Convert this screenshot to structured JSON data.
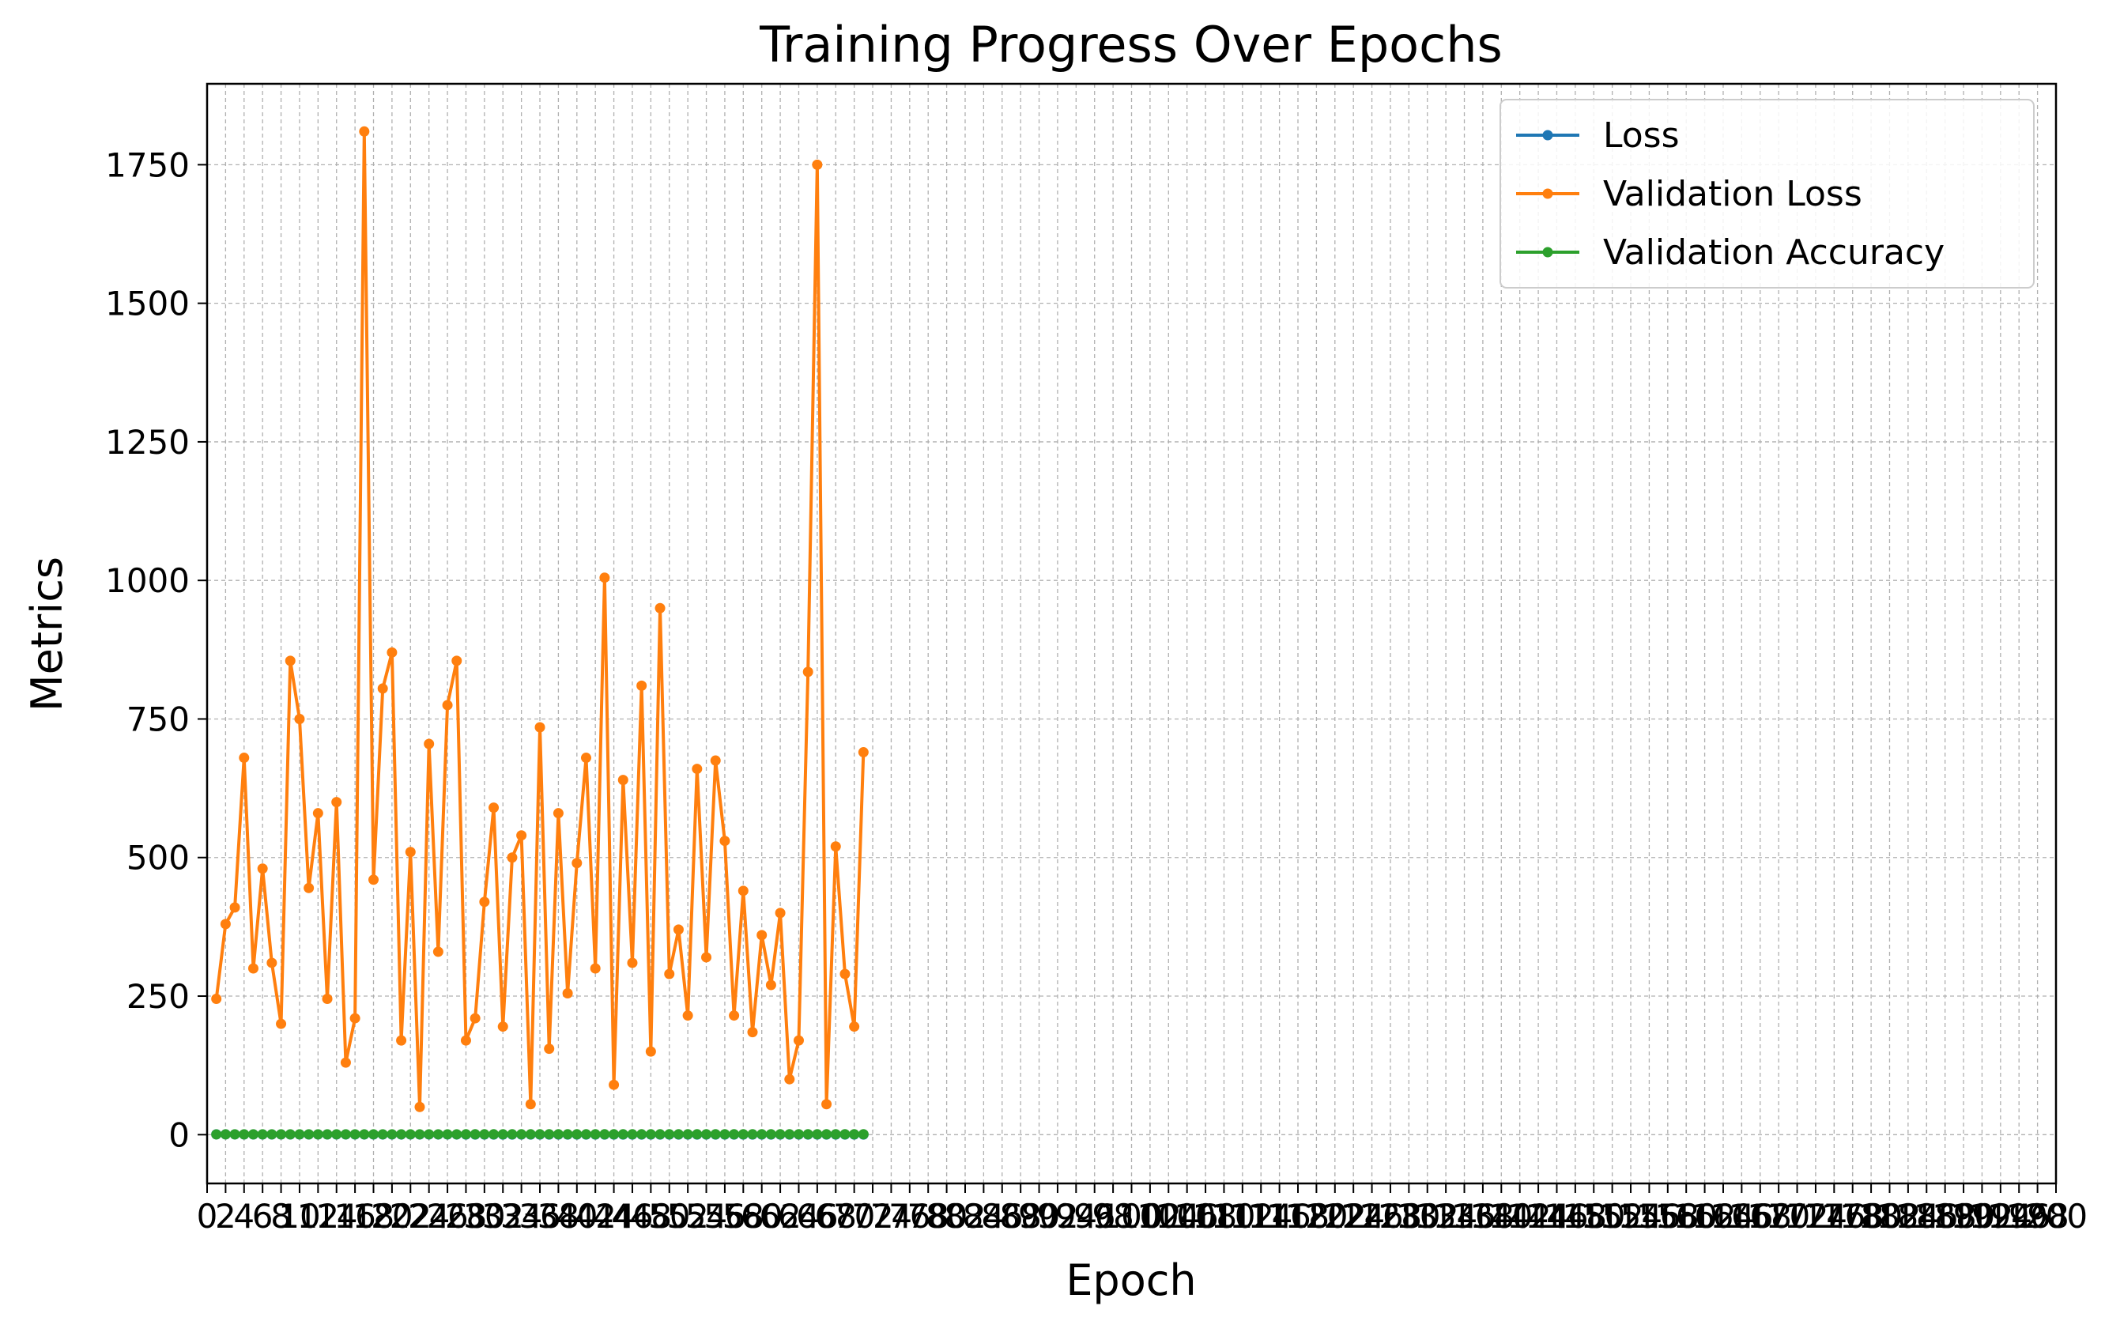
{
  "chart_data": {
    "type": "line",
    "title": "Training Progress Over Epochs",
    "xlabel": "Epoch",
    "ylabel": "Metrics",
    "xlim": [
      0,
      200
    ],
    "ylim": [
      -88,
      1896
    ],
    "x_ticks_every": 2,
    "y_ticks": [
      0,
      250,
      500,
      750,
      1000,
      1250,
      1500,
      1750
    ],
    "grid": true,
    "legend_position": "top-right",
    "series": [
      {
        "name": "Loss",
        "color": "#1f77b4",
        "values": [
          0.62,
          0.55,
          0.5,
          0.47,
          0.45,
          0.43,
          0.41,
          0.4,
          0.39,
          0.38,
          0.37,
          0.36,
          0.355,
          0.35,
          0.345,
          0.34,
          0.335,
          0.33,
          0.325,
          0.32,
          0.318,
          0.315,
          0.312,
          0.31,
          0.308,
          0.305,
          0.303,
          0.3,
          0.298,
          0.296,
          0.294,
          0.292,
          0.29,
          0.288,
          0.286,
          0.284,
          0.282,
          0.28,
          0.278,
          0.276,
          0.274,
          0.272,
          0.27,
          0.268,
          0.266,
          0.264,
          0.262,
          0.26,
          0.258,
          0.256,
          0.254,
          0.252,
          0.25,
          0.248,
          0.246,
          0.244,
          0.242,
          0.24,
          0.238,
          0.236,
          0.234,
          0.232,
          0.23,
          0.228,
          0.226,
          0.224,
          0.222,
          0.22,
          0.218,
          0.216,
          0.214
        ]
      },
      {
        "name": "Validation Loss",
        "color": "#ff7f0e",
        "values": [
          245,
          380,
          410,
          680,
          300,
          480,
          310,
          200,
          855,
          750,
          445,
          580,
          245,
          600,
          130,
          210,
          1810,
          460,
          805,
          870,
          170,
          510,
          50,
          705,
          330,
          775,
          855,
          170,
          210,
          420,
          590,
          195,
          500,
          540,
          55,
          735,
          155,
          580,
          255,
          490,
          680,
          300,
          1005,
          90,
          640,
          310,
          810,
          150,
          950,
          290,
          370,
          215,
          660,
          320,
          675,
          530,
          215,
          440,
          185,
          360,
          270,
          400,
          100,
          170,
          835,
          1750,
          55,
          520,
          290,
          195,
          690
        ]
      },
      {
        "name": "Validation Accuracy",
        "color": "#2ca02c",
        "values": [
          0.52,
          0.55,
          0.57,
          0.58,
          0.6,
          0.61,
          0.62,
          0.63,
          0.63,
          0.64,
          0.64,
          0.65,
          0.65,
          0.66,
          0.66,
          0.66,
          0.67,
          0.67,
          0.67,
          0.68,
          0.68,
          0.68,
          0.68,
          0.69,
          0.69,
          0.69,
          0.69,
          0.7,
          0.7,
          0.7,
          0.7,
          0.7,
          0.71,
          0.71,
          0.71,
          0.71,
          0.71,
          0.71,
          0.72,
          0.72,
          0.72,
          0.72,
          0.72,
          0.72,
          0.72,
          0.73,
          0.73,
          0.73,
          0.73,
          0.73,
          0.73,
          0.73,
          0.73,
          0.74,
          0.74,
          0.74,
          0.74,
          0.74,
          0.74,
          0.74,
          0.74,
          0.74,
          0.75,
          0.75,
          0.75,
          0.75,
          0.75,
          0.75,
          0.75,
          0.75,
          0.75
        ]
      }
    ]
  }
}
